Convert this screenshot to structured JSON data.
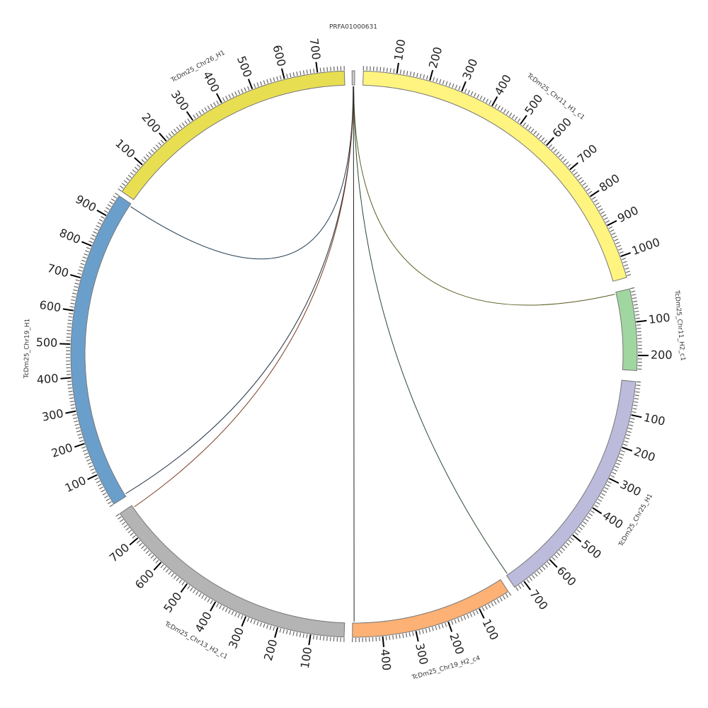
{
  "chart_data": {
    "type": "chord",
    "title": "",
    "tick_major": 100,
    "tick_minor": 10,
    "segments": [
      {
        "name": "PRFA01000631",
        "length": 8,
        "color": "#cccccc",
        "start_deg": 359.6
      },
      {
        "name": "TcDm25_Chr11_H1_c1",
        "length": 1065,
        "color": "#fff480",
        "start_deg": 1.9
      },
      {
        "name": "TcDm25_Chr11_H2_c1",
        "length": 245,
        "color": "#a0d6a0",
        "start_deg": 76.7
      },
      {
        "name": "TcDm25_Chr25_H1",
        "length": 733,
        "color": "#bcbbdc",
        "start_deg": 95.6
      },
      {
        "name": "TcDm25_Chr19_H2_c4",
        "length": 490,
        "color": "#fdb175",
        "start_deg": 147.0
      },
      {
        "name": "TcDm25_Chr13_H2_c1",
        "length": 790,
        "color": "#b4b4b4",
        "start_deg": 182.0
      },
      {
        "name": "TcDm25_Chr19_H1",
        "length": 970,
        "color": "#6a9fcc",
        "start_deg": 238.0
      },
      {
        "name": "TcDm25_Chr26_H1",
        "length": 780,
        "color": "#e8de52",
        "start_deg": 305.0
      }
    ],
    "deg_per_unit": 0.068,
    "links": [
      {
        "from": {
          "seg": 0,
          "pos": 3
        },
        "to": {
          "seg": 6,
          "pos": 962
        },
        "color": "#1f3a50"
      },
      {
        "from": {
          "seg": 0,
          "pos": 4
        },
        "to": {
          "seg": 6,
          "pos": 8
        },
        "color": "#1f2f40"
      },
      {
        "from": {
          "seg": 0,
          "pos": 4
        },
        "to": {
          "seg": 5,
          "pos": 782
        },
        "color": "#7a3a20"
      },
      {
        "from": {
          "seg": 0,
          "pos": 5
        },
        "to": {
          "seg": 2,
          "pos": 6
        },
        "color": "#5a5a20"
      },
      {
        "from": {
          "seg": 0,
          "pos": 5
        },
        "to": {
          "seg": 3,
          "pos": 728
        },
        "color": "#2a4a30"
      },
      {
        "from": {
          "seg": 0,
          "pos": 4
        },
        "to": {
          "seg": 4,
          "pos": 485
        },
        "color": "#222222"
      }
    ]
  }
}
